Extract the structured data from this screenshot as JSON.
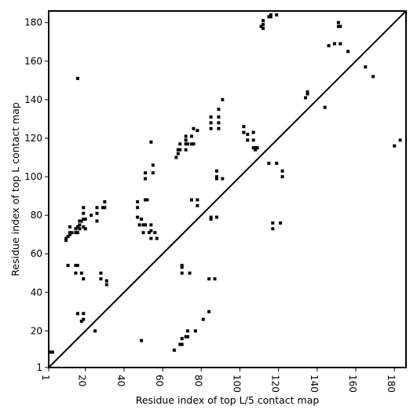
{
  "chart_data": {
    "type": "scatter",
    "title": "",
    "xlabel": "Residue index of top L/5 contact map",
    "ylabel": "Residue index of top L contact map",
    "xlim": [
      1,
      186
    ],
    "ylim": [
      1,
      186
    ],
    "xticks": [
      1,
      20,
      40,
      60,
      80,
      100,
      120,
      140,
      160,
      180
    ],
    "yticks": [
      1,
      20,
      40,
      60,
      80,
      100,
      120,
      140,
      160,
      180
    ],
    "grid": false,
    "diagonal": true,
    "marker": "square",
    "color": "#000000",
    "series": [
      {
        "points": [
          [
            2,
            9
          ],
          [
            3,
            9
          ],
          [
            10,
            67
          ],
          [
            10,
            68
          ],
          [
            11,
            69
          ],
          [
            12,
            71
          ],
          [
            12,
            70
          ],
          [
            12,
            74
          ],
          [
            13,
            71
          ],
          [
            15,
            73
          ],
          [
            15,
            71
          ],
          [
            16,
            74
          ],
          [
            16,
            71
          ],
          [
            17,
            73
          ],
          [
            17,
            75
          ],
          [
            17,
            77
          ],
          [
            18,
            77
          ],
          [
            19,
            78
          ],
          [
            19,
            74
          ],
          [
            19,
            81
          ],
          [
            19,
            84
          ],
          [
            20,
            78
          ],
          [
            20,
            73
          ],
          [
            23,
            80
          ],
          [
            26,
            84
          ],
          [
            26,
            81
          ],
          [
            26,
            77
          ],
          [
            29,
            84
          ],
          [
            30,
            84
          ],
          [
            30,
            87
          ],
          [
            47,
            79
          ],
          [
            47,
            84
          ],
          [
            47,
            87
          ],
          [
            48,
            75
          ],
          [
            49,
            78
          ],
          [
            50,
            71
          ],
          [
            50,
            75
          ],
          [
            51,
            75
          ],
          [
            51,
            99
          ],
          [
            51,
            102
          ],
          [
            51,
            88
          ],
          [
            52,
            88
          ],
          [
            53,
            71
          ],
          [
            54,
            72
          ],
          [
            54,
            68
          ],
          [
            54,
            75
          ],
          [
            55,
            102
          ],
          [
            55,
            106
          ],
          [
            56,
            71
          ],
          [
            57,
            68
          ],
          [
            67,
            110
          ],
          [
            68,
            112
          ],
          [
            68,
            114
          ],
          [
            69,
            114
          ],
          [
            69,
            117
          ],
          [
            72,
            114
          ],
          [
            72,
            117
          ],
          [
            72,
            119
          ],
          [
            72,
            121
          ],
          [
            73,
            117
          ],
          [
            75,
            121
          ],
          [
            75,
            117
          ],
          [
            76,
            117
          ],
          [
            76,
            125
          ],
          [
            78,
            85
          ],
          [
            78,
            88
          ],
          [
            78,
            124
          ],
          [
            75,
            88
          ],
          [
            85,
            128
          ],
          [
            85,
            131
          ],
          [
            85,
            125
          ],
          [
            88,
            100
          ],
          [
            88,
            103
          ],
          [
            89,
            125
          ],
          [
            89,
            128
          ],
          [
            89,
            131
          ],
          [
            89,
            135
          ],
          [
            91,
            140
          ],
          [
            88,
            99
          ],
          [
            91,
            99
          ],
          [
            85,
            79
          ],
          [
            85,
            78
          ],
          [
            88,
            79
          ],
          [
            102,
            123
          ],
          [
            102,
            126
          ],
          [
            104,
            122
          ],
          [
            104,
            119
          ],
          [
            107,
            123
          ],
          [
            107,
            119
          ],
          [
            107,
            115
          ],
          [
            108,
            115
          ],
          [
            108,
            114
          ],
          [
            109,
            115
          ],
          [
            111,
            178
          ],
          [
            112,
            177
          ],
          [
            112,
            179
          ],
          [
            112,
            181
          ],
          [
            115,
            183
          ],
          [
            116,
            183
          ],
          [
            116,
            184
          ],
          [
            119,
            184
          ],
          [
            115,
            107
          ],
          [
            119,
            107
          ],
          [
            117,
            76
          ],
          [
            117,
            73
          ],
          [
            121,
            76
          ],
          [
            122,
            100
          ],
          [
            122,
            103
          ],
          [
            134,
            141
          ],
          [
            135,
            143
          ],
          [
            135,
            144
          ],
          [
            144,
            136
          ],
          [
            146,
            168
          ],
          [
            149,
            169
          ],
          [
            151,
            178
          ],
          [
            151,
            180
          ],
          [
            152,
            178
          ],
          [
            152,
            169
          ],
          [
            156,
            165
          ],
          [
            165,
            157
          ],
          [
            169,
            152
          ],
          [
            180,
            116
          ],
          [
            183,
            119
          ],
          [
            11,
            54
          ],
          [
            15,
            54
          ],
          [
            15,
            50
          ],
          [
            16,
            54
          ],
          [
            18,
            50
          ],
          [
            19,
            47
          ],
          [
            28,
            50
          ],
          [
            28,
            47
          ],
          [
            31,
            46
          ],
          [
            31,
            44
          ],
          [
            16,
            29
          ],
          [
            19,
            29
          ],
          [
            19,
            26
          ],
          [
            18,
            25
          ],
          [
            25,
            20
          ],
          [
            16,
            151
          ],
          [
            70,
            54
          ],
          [
            70,
            53
          ],
          [
            70,
            50
          ],
          [
            74,
            50
          ],
          [
            84,
            47
          ],
          [
            87,
            47
          ],
          [
            84,
            30
          ],
          [
            81,
            26
          ],
          [
            77,
            20
          ],
          [
            73,
            20
          ],
          [
            72,
            17
          ],
          [
            73,
            17
          ],
          [
            70,
            16
          ],
          [
            69,
            13
          ],
          [
            70,
            13
          ],
          [
            66,
            10
          ],
          [
            49,
            15
          ],
          [
            54,
            118
          ]
        ]
      }
    ]
  }
}
